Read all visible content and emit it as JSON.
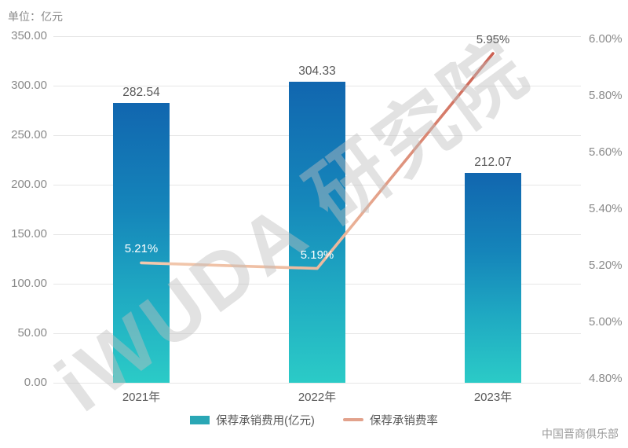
{
  "unit_label": "单位：亿元",
  "watermark": "iWUDA 研究院",
  "footer": "中国晋商俱乐部",
  "legend": [
    {
      "type": "bar",
      "label": "保荐承销费用(亿元)"
    },
    {
      "type": "line",
      "label": "保荐承销费率"
    }
  ],
  "colors": {
    "bar_gradient_top": "#1166af",
    "bar_gradient_bottom": "#2bcbc7",
    "line_gradient_start": "#f2c9ae",
    "line_gradient_end": "#cb5f51",
    "legend_bar_swatch": "#2aa7b5",
    "legend_line_swatch": "#e2a28c",
    "gridline": "#e7e7e7",
    "axis_text": "#8a8a8a",
    "data_label_text": "#595959",
    "on_bar_label_text": "#ffffff"
  },
  "chart_data": {
    "type": "combo bar+line (dual axis)",
    "categories": [
      "2021年",
      "2022年",
      "2023年"
    ],
    "series": [
      {
        "name": "保荐承销费用(亿元)",
        "type": "bar",
        "axis": "left",
        "values": [
          282.54,
          304.33,
          212.07
        ],
        "labels": [
          "282.54",
          "304.33",
          "212.07"
        ]
      },
      {
        "name": "保荐承销费率",
        "type": "line",
        "axis": "right",
        "values": [
          5.21,
          5.19,
          5.95
        ],
        "labels": [
          "5.21%",
          "5.19%",
          "5.95%"
        ]
      }
    ],
    "left_axis": {
      "title": "单位：亿元",
      "min": 0,
      "max": 350,
      "step": 50,
      "ticks": [
        "350.00",
        "300.00",
        "250.00",
        "200.00",
        "150.00",
        "100.00",
        "50.00",
        "0.00"
      ]
    },
    "right_axis": {
      "min": 4.8,
      "max": 6.0,
      "step": 0.2,
      "ticks": [
        "6.00%",
        "5.80%",
        "5.60%",
        "5.40%",
        "5.20%",
        "5.00%",
        "4.80%"
      ]
    },
    "grid": "horizontal",
    "legend_position": "bottom"
  }
}
